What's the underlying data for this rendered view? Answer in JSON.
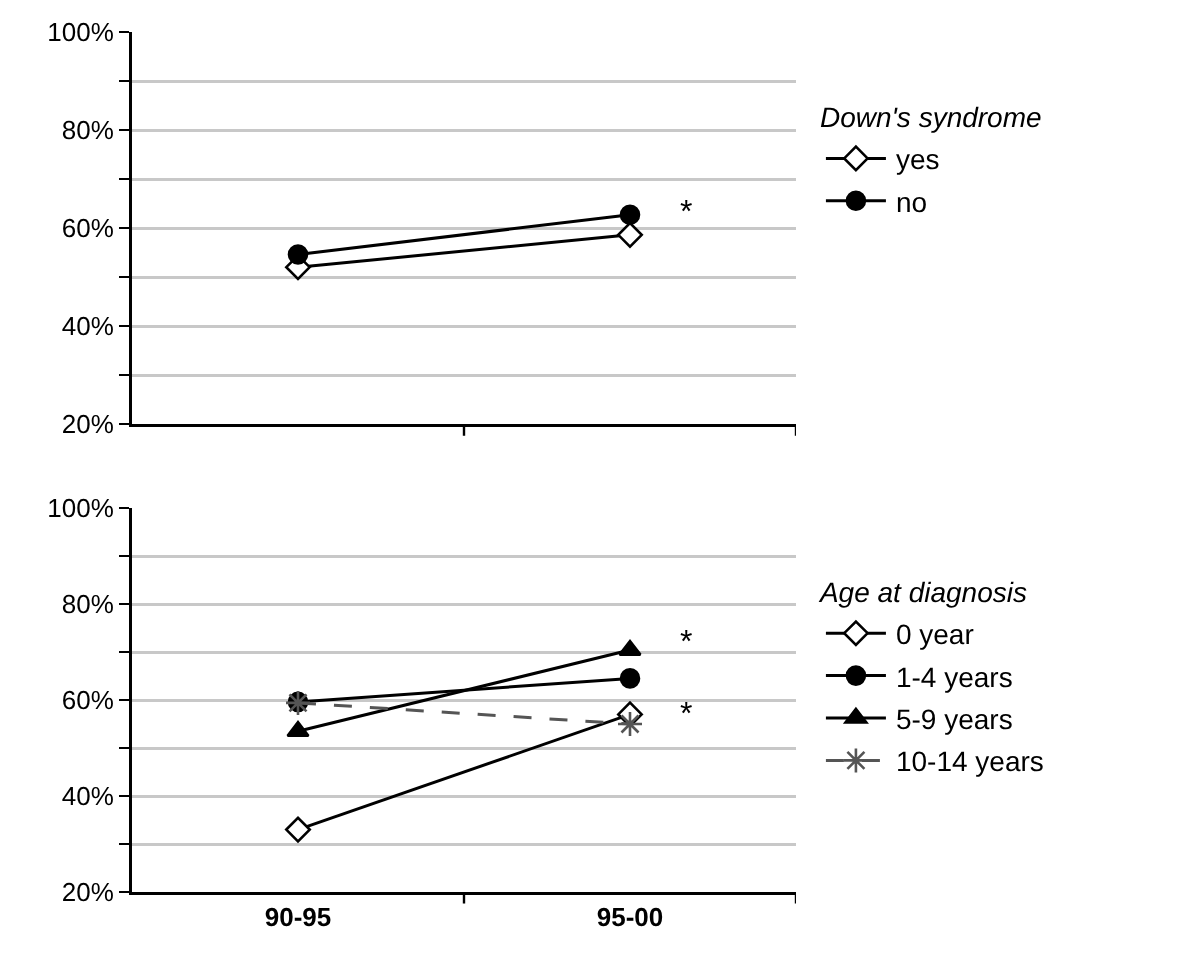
{
  "chart_data": [
    {
      "type": "line",
      "categories": [
        "90-95",
        "95-00"
      ],
      "legend_title": "Down's syndrome",
      "legend": "right",
      "grid": "y",
      "tick_labels": "y",
      "ylim": [
        20,
        100
      ],
      "yticks": [
        {
          "value": 20,
          "label": "20%"
        },
        {
          "value": 30,
          "label": null
        },
        {
          "value": 40,
          "label": "40%"
        },
        {
          "value": 50,
          "label": null
        },
        {
          "value": 60,
          "label": "60%"
        },
        {
          "value": 70,
          "label": null
        },
        {
          "value": 80,
          "label": "80%"
        },
        {
          "value": 90,
          "label": null
        },
        {
          "value": 100,
          "label": "100%"
        }
      ],
      "series": [
        {
          "name": "yes",
          "color": "#000000",
          "marker": "diamond",
          "line_style": "solid",
          "values": [
            52,
            58.6
          ]
        },
        {
          "name": "no",
          "color": "#000000",
          "marker": "circle",
          "line_style": "solid",
          "values": [
            54.6,
            62.7
          ]
        }
      ],
      "annotations": [
        {
          "text": "*",
          "x": "95-00",
          "y": 63
        }
      ]
    },
    {
      "type": "line",
      "categories": [
        "90-95",
        "95-00"
      ],
      "legend_title": "Age at diagnosis",
      "legend": "right",
      "grid": "y",
      "ylim": [
        20,
        100
      ],
      "yticks": [
        {
          "value": 20,
          "label": "20%"
        },
        {
          "value": 30,
          "label": null
        },
        {
          "value": 40,
          "label": "40%"
        },
        {
          "value": 50,
          "label": null
        },
        {
          "value": 60,
          "label": "60%"
        },
        {
          "value": 70,
          "label": null
        },
        {
          "value": 80,
          "label": "80%"
        },
        {
          "value": 90,
          "label": null
        },
        {
          "value": 100,
          "label": "100%"
        }
      ],
      "series": [
        {
          "name": "0 year",
          "color": "#000000",
          "marker": "diamond",
          "line_style": "solid",
          "values": [
            33,
            57
          ]
        },
        {
          "name": "1-4 years",
          "color": "#000000",
          "marker": "circle",
          "line_style": "solid",
          "values": [
            59.6,
            64.5
          ]
        },
        {
          "name": "5-9 years",
          "color": "#000000",
          "marker": "triangle",
          "line_style": "solid",
          "values": [
            53.5,
            70.4
          ]
        },
        {
          "name": "10-14 years",
          "color": "#555555",
          "marker": "cross",
          "line_style": "dashed",
          "values": [
            59.4,
            55
          ]
        }
      ],
      "annotations": [
        {
          "text": "*",
          "x": "95-00",
          "y": 72
        },
        {
          "text": "*",
          "x": "95-00",
          "y": 57
        }
      ]
    }
  ]
}
